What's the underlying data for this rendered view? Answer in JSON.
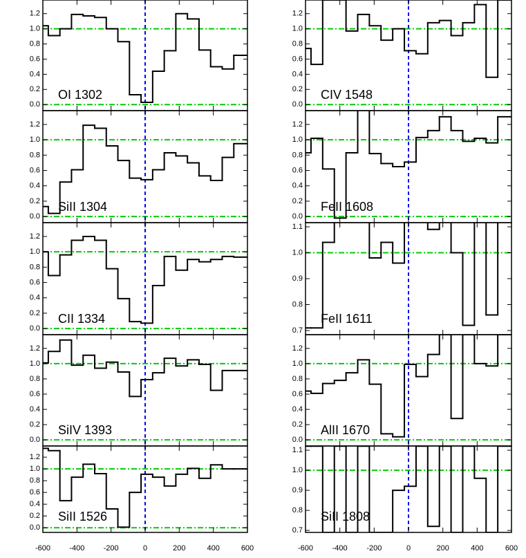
{
  "chart_data": [
    {
      "type": "step",
      "label": "OI 1302",
      "x": [
        -600,
        -568,
        -500,
        -432,
        -364,
        -296,
        -228,
        -160,
        -92,
        -24,
        44,
        112,
        180,
        248,
        316,
        384,
        452,
        520
      ],
      "values": [
        1.04,
        0.91,
        1.0,
        1.19,
        1.17,
        1.15,
        1.0,
        0.83,
        0.13,
        0.03,
        0.44,
        0.71,
        1.2,
        1.13,
        0.72,
        0.5,
        0.47,
        0.65
      ],
      "xlim": [
        -600,
        600
      ],
      "ylim": [
        -0.08,
        1.38
      ],
      "xticks": [
        -600,
        -400,
        -200,
        0,
        200,
        400,
        600
      ],
      "yticks": [
        {
          "value": 0,
          "label": "0.0"
        },
        {
          "value": 0.2,
          "label": "0.2"
        },
        {
          "value": 0.4,
          "label": "0.4"
        },
        {
          "value": 0.6,
          "label": "0.6"
        },
        {
          "value": 0.8,
          "label": "0.8"
        },
        {
          "value": 1,
          "label": "1.0"
        },
        {
          "value": 1.2,
          "label": "1.2"
        }
      ],
      "hlines": [
        0,
        1
      ],
      "vlines": [
        0
      ]
    },
    {
      "type": "step",
      "label": "SiII 1304",
      "x": [
        -600,
        -568,
        -500,
        -432,
        -364,
        -296,
        -228,
        -160,
        -92,
        -24,
        44,
        112,
        180,
        248,
        316,
        384,
        452,
        520
      ],
      "values": [
        0.13,
        0.04,
        0.45,
        0.61,
        1.19,
        1.15,
        0.92,
        0.73,
        0.5,
        0.48,
        0.61,
        0.83,
        0.79,
        0.7,
        0.53,
        0.47,
        0.77,
        0.95
      ],
      "xlim": [
        -600,
        600
      ],
      "ylim": [
        -0.08,
        1.38
      ],
      "xticks": [
        -600,
        -400,
        -200,
        0,
        200,
        400,
        600
      ],
      "yticks": [
        {
          "value": 0,
          "label": "0.0"
        },
        {
          "value": 0.2,
          "label": "0.2"
        },
        {
          "value": 0.4,
          "label": "0.4"
        },
        {
          "value": 0.6,
          "label": "0.6"
        },
        {
          "value": 0.8,
          "label": "0.8"
        },
        {
          "value": 1,
          "label": "1.0"
        },
        {
          "value": 1.2,
          "label": "1.2"
        }
      ],
      "hlines": [
        0,
        1
      ],
      "vlines": [
        0
      ]
    },
    {
      "type": "step",
      "label": "CII 1334",
      "x": [
        -600,
        -568,
        -500,
        -432,
        -364,
        -296,
        -228,
        -160,
        -92,
        -24,
        44,
        112,
        180,
        248,
        316,
        384,
        452,
        520
      ],
      "values": [
        1.0,
        0.69,
        0.96,
        1.15,
        1.2,
        1.15,
        0.78,
        0.39,
        0.09,
        0.07,
        0.56,
        0.94,
        0.76,
        0.9,
        0.87,
        0.9,
        0.94,
        0.93
      ],
      "xlim": [
        -600,
        600
      ],
      "ylim": [
        -0.08,
        1.38
      ],
      "xticks": [
        -600,
        -400,
        -200,
        0,
        200,
        400,
        600
      ],
      "yticks": [
        {
          "value": 0,
          "label": "0.0"
        },
        {
          "value": 0.2,
          "label": "0.2"
        },
        {
          "value": 0.4,
          "label": "0.4"
        },
        {
          "value": 0.6,
          "label": "0.6"
        },
        {
          "value": 0.8,
          "label": "0.8"
        },
        {
          "value": 1,
          "label": "1.0"
        },
        {
          "value": 1.2,
          "label": "1.2"
        }
      ],
      "hlines": [
        0,
        1
      ],
      "vlines": [
        0
      ]
    },
    {
      "type": "step",
      "label": "SiIV 1393",
      "x": [
        -600,
        -568,
        -500,
        -432,
        -364,
        -296,
        -228,
        -160,
        -92,
        -24,
        44,
        112,
        180,
        248,
        316,
        384,
        452,
        520
      ],
      "values": [
        1.01,
        1.16,
        1.31,
        0.98,
        1.11,
        0.94,
        1.02,
        0.89,
        0.57,
        0.79,
        0.88,
        1.07,
        0.97,
        1.05,
        0.99,
        0.65,
        0.91,
        0.91
      ],
      "xlim": [
        -600,
        600
      ],
      "ylim": [
        -0.08,
        1.38
      ],
      "xticks": [
        -600,
        -400,
        -200,
        0,
        200,
        400,
        600
      ],
      "yticks": [
        {
          "value": 0,
          "label": "0.0"
        },
        {
          "value": 0.2,
          "label": "0.2"
        },
        {
          "value": 0.4,
          "label": "0.4"
        },
        {
          "value": 0.6,
          "label": "0.6"
        },
        {
          "value": 0.8,
          "label": "0.8"
        },
        {
          "value": 1,
          "label": "1.0"
        },
        {
          "value": 1.2,
          "label": "1.2"
        }
      ],
      "hlines": [
        0,
        1
      ],
      "vlines": [
        0
      ]
    },
    {
      "type": "step",
      "label": "SiII 1526",
      "x": [
        -600,
        -568,
        -500,
        -432,
        -364,
        -296,
        -228,
        -160,
        -92,
        -24,
        44,
        112,
        180,
        248,
        316,
        384,
        452,
        520
      ],
      "values": [
        1.35,
        1.31,
        0.46,
        0.86,
        1.08,
        0.92,
        0.32,
        0.01,
        0.6,
        0.91,
        0.86,
        0.71,
        0.91,
        1.01,
        0.84,
        1.07,
        1.0,
        1.0
      ],
      "xlim": [
        -600,
        600
      ],
      "ylim": [
        -0.08,
        1.39
      ],
      "xticks": [
        -600,
        -400,
        -200,
        0,
        200,
        400,
        600
      ],
      "yticks": [
        {
          "value": 0,
          "label": "0.0"
        },
        {
          "value": 0.2,
          "label": "0.2"
        },
        {
          "value": 0.4,
          "label": "0.4"
        },
        {
          "value": 0.6,
          "label": "0.6"
        },
        {
          "value": 0.8,
          "label": "0.8"
        },
        {
          "value": 1,
          "label": "1.0"
        },
        {
          "value": 1.2,
          "label": "1.2"
        }
      ],
      "hlines": [
        0,
        1
      ],
      "vlines": [
        0
      ]
    },
    {
      "type": "step",
      "label": "CIV 1548",
      "x": [
        -600,
        -568,
        -500,
        -432,
        -364,
        -296,
        -228,
        -160,
        -92,
        -24,
        44,
        112,
        180,
        248,
        316,
        384,
        452,
        520
      ],
      "values": [
        0.74,
        0.53,
        1.38,
        1.38,
        0.97,
        1.19,
        1.04,
        0.85,
        1.0,
        0.71,
        0.67,
        1.08,
        1.11,
        0.91,
        1.08,
        1.32,
        0.36,
        1.38
      ],
      "xlim": [
        -600,
        600
      ],
      "ylim": [
        -0.08,
        1.38
      ],
      "xticks": [
        -600,
        -400,
        -200,
        0,
        200,
        400,
        600
      ],
      "yticks": [
        {
          "value": 0,
          "label": "0.0"
        },
        {
          "value": 0.2,
          "label": "0.2"
        },
        {
          "value": 0.4,
          "label": "0.4"
        },
        {
          "value": 0.6,
          "label": "0.6"
        },
        {
          "value": 0.8,
          "label": "0.8"
        },
        {
          "value": 1,
          "label": "1.0"
        },
        {
          "value": 1.2,
          "label": "1.2"
        }
      ],
      "hlines": [
        0,
        1
      ],
      "vlines": [
        0
      ]
    },
    {
      "type": "step",
      "label": "FeII 1608",
      "x": [
        -600,
        -568,
        -500,
        -432,
        -364,
        -296,
        -228,
        -160,
        -92,
        -24,
        44,
        112,
        180,
        248,
        316,
        384,
        452,
        520
      ],
      "values": [
        0.83,
        1.02,
        0.62,
        -0.02,
        0.83,
        1.39,
        0.82,
        0.69,
        0.65,
        0.71,
        1.03,
        1.12,
        1.3,
        1.12,
        0.98,
        1.02,
        0.96,
        1.3
      ],
      "xlim": [
        -600,
        600
      ],
      "ylim": [
        -0.08,
        1.38
      ],
      "xticks": [
        -600,
        -400,
        -200,
        0,
        200,
        400,
        600
      ],
      "yticks": [
        {
          "value": 0,
          "label": "0.0"
        },
        {
          "value": 0.2,
          "label": "0.2"
        },
        {
          "value": 0.4,
          "label": "0.4"
        },
        {
          "value": 0.6,
          "label": "0.6"
        },
        {
          "value": 0.8,
          "label": "0.8"
        },
        {
          "value": 1,
          "label": "1.0"
        },
        {
          "value": 1.2,
          "label": "1.2"
        }
      ],
      "hlines": [
        0,
        1
      ],
      "vlines": [
        0
      ]
    },
    {
      "type": "step",
      "label": "FeII 1611",
      "x": [
        -600,
        -568,
        -500,
        -432,
        -364,
        -296,
        -228,
        -160,
        -92,
        -24,
        44,
        112,
        180,
        248,
        316,
        384,
        452,
        520
      ],
      "values": [
        0.71,
        0.71,
        1.04,
        1.12,
        1.12,
        1.12,
        0.98,
        1.04,
        0.96,
        1.12,
        1.12,
        1.09,
        1.12,
        1.0,
        0.72,
        1.12,
        0.76,
        1.12
      ],
      "xlim": [
        -600,
        600
      ],
      "ylim": [
        0.684,
        1.116
      ],
      "xticks": [
        -600,
        -400,
        -200,
        0,
        200,
        400,
        600
      ],
      "yticks": [
        {
          "value": 0.7,
          "label": "0.7"
        },
        {
          "value": 0.8,
          "label": "0.8"
        },
        {
          "value": 0.9,
          "label": "0.9"
        },
        {
          "value": 1,
          "label": "1.0"
        },
        {
          "value": 1.1,
          "label": "1.1"
        }
      ],
      "hlines": [
        1
      ],
      "vlines": [
        0
      ]
    },
    {
      "type": "step",
      "label": "AlII 1670",
      "x": [
        -600,
        -568,
        -500,
        -432,
        -364,
        -296,
        -228,
        -160,
        -92,
        -24,
        44,
        112,
        180,
        248,
        316,
        384,
        452,
        520
      ],
      "values": [
        0.64,
        0.61,
        0.74,
        0.78,
        0.88,
        1.05,
        0.73,
        0.08,
        0.04,
        0.99,
        0.83,
        1.12,
        1.38,
        0.28,
        1.38,
        1.0,
        0.97,
        1.38
      ],
      "xlim": [
        -600,
        600
      ],
      "ylim": [
        -0.08,
        1.38
      ],
      "xticks": [
        -600,
        -400,
        -200,
        0,
        200,
        400,
        600
      ],
      "yticks": [
        {
          "value": 0,
          "label": "0.0"
        },
        {
          "value": 0.2,
          "label": "0.2"
        },
        {
          "value": 0.4,
          "label": "0.4"
        },
        {
          "value": 0.6,
          "label": "0.6"
        },
        {
          "value": 0.8,
          "label": "0.8"
        },
        {
          "value": 1,
          "label": "1.0"
        },
        {
          "value": 1.2,
          "label": "1.2"
        }
      ],
      "hlines": [
        0,
        1
      ],
      "vlines": [
        0
      ]
    },
    {
      "type": "step",
      "label": "SiII 1808",
      "x": [
        -600,
        -568,
        -500,
        -432,
        -364,
        -296,
        -228,
        -160,
        -92,
        -24,
        44,
        112,
        180,
        248,
        316,
        384,
        452,
        520
      ],
      "values": [
        1.12,
        1.12,
        0.69,
        1.12,
        0.69,
        1.12,
        0.69,
        0.69,
        0.9,
        0.92,
        1.12,
        0.72,
        1.12,
        0.69,
        1.12,
        0.96,
        0.69,
        1.12
      ],
      "xlim": [
        -600,
        600
      ],
      "ylim": [
        0.69,
        1.121
      ],
      "xticks": [
        -600,
        -400,
        -200,
        0,
        200,
        400,
        600
      ],
      "yticks": [
        {
          "value": 0.7,
          "label": "0.7"
        },
        {
          "value": 0.8,
          "label": "0.8"
        },
        {
          "value": 0.9,
          "label": "0.9"
        },
        {
          "value": 1,
          "label": "1.0"
        },
        {
          "value": 1.1,
          "label": "1.1"
        }
      ],
      "hlines": [
        1
      ],
      "vlines": [
        0
      ]
    }
  ]
}
